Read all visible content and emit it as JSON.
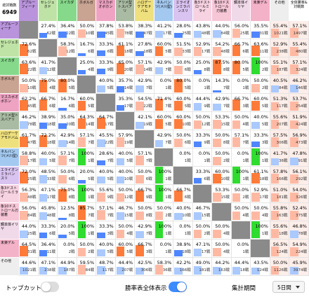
{
  "header": {
    "total_label": "総対戦数",
    "total": "6949",
    "overall_label": "全体勝率&対戦数"
  },
  "decks": [
    {
      "label": "アプルーフィーナ",
      "color": "#b994dc"
    },
    {
      "label": "セレジェホド",
      "color": "#bfe3a6"
    },
    {
      "label": "スイカダ",
      "color": "#86d98a"
    },
    {
      "label": "ホボルガ",
      "color": "#c9a493"
    },
    {
      "label": "マスカボオボホン",
      "color": "#efa3c3"
    },
    {
      "label": "アリメ型トスバアリ",
      "color": "#a9bba3"
    },
    {
      "label": "ハロデーケアモドバム",
      "color": "#efe07e"
    },
    {
      "label": "ネルバンツ(メ川型)",
      "color": "#a3c9f0"
    },
    {
      "label": "エライオンミラバンスリ",
      "color": "#d9c3f0"
    },
    {
      "label": "象3ドストロールミライ",
      "color": "#f7d2e1"
    },
    {
      "label": "象10ドストロール刃装着",
      "color": "#f6c6d7"
    },
    {
      "label": "鋼本体イリヤ",
      "color": "#f0d9e8"
    },
    {
      "label": "未楽デル",
      "color": "#f4b2c9"
    },
    {
      "label": "その他",
      "color": "#eeeeee"
    }
  ],
  "rows": [
    {
      "cells": [
        null,
        [
          27.4,
          "27.4%",
          "62戦"
        ],
        [
          36.4,
          "36.4%",
          "22戦"
        ],
        [
          50.0,
          "50.0%",
          "10戦"
        ],
        [
          37.8,
          "37.8%",
          "45戦"
        ],
        [
          53.8,
          "53.8%",
          "78戦"
        ],
        [
          38.3,
          "38.3%",
          "47戦"
        ],
        [
          41.2,
          "41.2%",
          "17戦"
        ],
        [
          28.0,
          "28.0%",
          "25戦"
        ],
        [
          43.8,
          "43.8%",
          "48戦"
        ],
        [
          44.0,
          "44.0%",
          "84戦"
        ],
        [
          56.0,
          "56.0%",
          "25戦"
        ],
        [
          35.5,
          "35.5%",
          "31戦"
        ],
        [
          55.4,
          "55.4%",
          "1021戦"
        ],
        [
          57.1,
          "57.1%",
          "1497戦"
        ]
      ]
    },
    {
      "cells": [
        [
          72.6,
          "72.6%",
          "62戦"
        ],
        null,
        [
          58.3,
          "58.3%",
          "12戦"
        ],
        [
          16.7,
          "16.7%",
          "6戦"
        ],
        [
          33.3,
          "33.3%",
          "6戦"
        ],
        [
          61.1,
          "61.1%",
          "18戦"
        ],
        [
          27.8,
          "27.8%",
          "18戦"
        ],
        [
          60.0,
          "60.0%",
          "5戦"
        ],
        [
          51.5,
          "51.5%",
          "33戦"
        ],
        [
          52.9,
          "52.9%",
          "17戦"
        ],
        [
          54.2,
          "54.2%",
          "48戦"
        ],
        [
          66.7,
          "66.7%",
          "6戦"
        ],
        [
          63.6,
          "63.6%",
          "11戦"
        ],
        [
          52.9,
          "52.9%",
          "238戦"
        ],
        [
          55.4,
          "55.4%",
          "480戦"
        ]
      ]
    },
    {
      "cells": [
        [
          63.6,
          "63.6%",
          "22戦"
        ],
        [
          41.7,
          "41.7%",
          "12戦"
        ],
        null,
        [
          25.0,
          "25.0%",
          "4戦"
        ],
        [
          33.3,
          "33.3%",
          "9戦"
        ],
        [
          65.0,
          "65.0%",
          "20戦"
        ],
        [
          57.1,
          "57.1%",
          "14戦"
        ],
        [
          42.9,
          "42.9%",
          "7戦"
        ],
        [
          50.0,
          "50.0%",
          "6戦"
        ],
        [
          25.0,
          "25.0%",
          "8戦"
        ],
        [
          87.5,
          "87.5%",
          "8戦"
        ],
        [
          80.0,
          "80.0%",
          "5戦"
        ],
        [
          100,
          "100%",
          "2戦"
        ],
        [
          55.1,
          "55.1%",
          "187戦"
        ],
        [
          57.1,
          "57.1%",
          "324戦"
        ]
      ]
    },
    {
      "cells": [
        [
          50.0,
          "50.0%",
          "10戦"
        ],
        [
          75.0,
          "75.0%",
          "4戦"
        ],
        [
          80.0,
          "80.0%",
          "5戦"
        ],
        null,
        [
          40.0,
          "40.0%",
          "5戦"
        ],
        [
          35.7,
          "35.7%",
          "14戦"
        ],
        [
          42.9,
          "42.9%",
          "7戦"
        ],
        [
          0.0,
          "0.0%",
          "1戦"
        ],
        [
          80.0,
          "80.0%",
          "5戦"
        ],
        [
          0.0,
          "0.0%",
          "1戦"
        ],
        [
          14.3,
          "14.3%",
          "7戦"
        ],
        [
          0.0,
          "0.0%",
          "1戦"
        ],
        [
          50.0,
          "50.0%",
          "2戦"
        ],
        [
          40.5,
          "40.5%",
          "84戦"
        ],
        [
          46.2,
          "46.2%",
          "146戦"
        ]
      ]
    },
    {
      "cells": [
        [
          62.2,
          "62.2%",
          "45戦"
        ],
        [
          66.7,
          "66.7%",
          "6戦"
        ],
        [
          16.7,
          "16.7%",
          "6戦"
        ],
        [
          60.0,
          "60.0%",
          "5戦"
        ],
        null,
        [
          35.3,
          "35.3%",
          "17戦"
        ],
        [
          54.5,
          "54.5%",
          "22戦"
        ],
        [
          71.4,
          "71.4%",
          "7戦"
        ],
        [
          60.0,
          "60.0%",
          "5戦"
        ],
        [
          44.4,
          "44.4%",
          "9戦"
        ],
        [
          42.9,
          "42.9%",
          "7戦"
        ],
        [
          66.7,
          "66.7%",
          "3戦"
        ],
        [
          60.0,
          "60.0%",
          "5戦"
        ],
        [
          51.3,
          "51.3%",
          "117戦"
        ],
        [
          53.7,
          "53.7%",
          "254戦"
        ]
      ]
    },
    {
      "cells": [
        [
          46.2,
          "46.2%",
          "78戦"
        ],
        [
          38.9,
          "38.9%",
          "18戦"
        ],
        [
          35.0,
          "35.0%",
          "20戦"
        ],
        [
          64.3,
          "64.3%",
          "14戦"
        ],
        [
          64.7,
          "64.7%",
          "17戦"
        ],
        null,
        [
          42.1,
          "42.1%",
          "19戦"
        ],
        [
          60.0,
          "60.0%",
          "5戦"
        ],
        [
          60.0,
          "60.0%",
          "10戦"
        ],
        [
          50.0,
          "50.0%",
          "12戦"
        ],
        [
          53.3,
          "53.3%",
          "15戦"
        ],
        [
          50.0,
          "50.0%",
          "4戦"
        ],
        [
          40.0,
          "40.0%",
          "5戦"
        ],
        [
          55.6,
          "55.6%",
          "207戦"
        ],
        [
          51.9,
          "51.9%",
          "424戦"
        ]
      ]
    },
    {
      "cells": [
        [
          61.7,
          "61.7%",
          "47戦"
        ],
        [
          72.2,
          "72.2%",
          "18戦"
        ],
        [
          42.9,
          "42.9%",
          "14戦"
        ],
        [
          57.1,
          "57.1%",
          "7戦"
        ],
        [
          45.5,
          "45.5%",
          "22戦"
        ],
        [
          57.9,
          "57.9%",
          "19戦"
        ],
        null,
        [
          42.9,
          "42.9%",
          "7戦"
        ],
        [
          50.0,
          "50.0%",
          "6戦"
        ],
        [
          33.3,
          "33.3%",
          "9戦"
        ],
        [
          50.0,
          "50.0%",
          "8戦"
        ],
        [
          57.1,
          "57.1%",
          "7戦"
        ],
        [
          33.3,
          "33.3%",
          "3戦"
        ],
        [
          57.5,
          "57.5%",
          "306戦"
        ],
        [
          56.9,
          "56.9%",
          "473戦"
        ]
      ]
    },
    {
      "cells": [
        [
          58.8,
          "58.8%",
          "17戦"
        ],
        [
          40.0,
          "40.0%",
          "5戦"
        ],
        [
          57.1,
          "57.1%",
          "7戦"
        ],
        [
          100,
          "100%",
          "1戦"
        ],
        [
          28.6,
          "28.6%",
          "7戦"
        ],
        [
          40.0,
          "40.0%",
          "5戦"
        ],
        [
          57.1,
          "57.1%",
          "7戦"
        ],
        null,
        [
          0.0,
          "0.0%",
          "1戦"
        ],
        [
          0.0,
          "0.0%",
          "1戦"
        ],
        [
          50.0,
          "50.0%",
          "2戦"
        ],
        [
          0.0,
          "0.0%",
          "1戦"
        ],
        [
          100,
          "100%",
          "1戦"
        ],
        [
          41.7,
          "41.7%",
          "36戦"
        ],
        [
          47.8,
          "47.8%",
          "91戦"
        ]
      ]
    },
    {
      "cells": [
        [
          72.0,
          "72.0%",
          "25戦"
        ],
        [
          48.5,
          "48.5%",
          "33戦"
        ],
        [
          50.0,
          "50.0%",
          "6戦"
        ],
        [
          20.0,
          "20.0%",
          "5戦"
        ],
        [
          40.0,
          "40.0%",
          "5戦"
        ],
        [
          40.0,
          "40.0%",
          "10戦"
        ],
        [
          50.0,
          "50.0%",
          "6戦"
        ],
        [
          100,
          "100%",
          "1戦"
        ],
        null,
        [
          33.3,
          "33.3%",
          "6戦"
        ],
        [
          60.0,
          "60.0%",
          "10戦"
        ],
        [
          100,
          "100%",
          "1戦"
        ],
        [
          61.1,
          "61.1%",
          "18戦"
        ],
        [
          57.8,
          "57.8%",
          "166戦"
        ],
        [
          56.1,
          "56.1%",
          "292戦"
        ]
      ]
    },
    {
      "cells": [
        [
          56.3,
          "56.3%",
          "48戦"
        ],
        [
          47.1,
          "47.1%",
          "17戦"
        ],
        [
          75.0,
          "75.0%",
          "8戦"
        ],
        [
          100,
          "100%",
          "1戦"
        ],
        [
          55.6,
          "55.6%",
          "9戦"
        ],
        [
          50.0,
          "50.0%",
          "12戦"
        ],
        [
          66.7,
          "66.7%",
          "9戦"
        ],
        [
          100,
          "100%",
          "1戦"
        ],
        [
          66.7,
          "66.7%",
          "6戦"
        ],
        null,
        [
          53.3,
          "53.3%",
          "15戦"
        ],
        [
          50.0,
          "50.0%",
          "2戦"
        ],
        [
          52.9,
          "52.9%",
          "17戦"
        ],
        [
          51.0,
          "51.0%",
          "181戦"
        ],
        [
          54.0,
          "54.0%",
          "326戦"
        ]
      ]
    },
    {
      "cells": [
        [
          56.0,
          "56.0%",
          "84戦"
        ],
        [
          45.8,
          "45.8%",
          "48戦"
        ],
        [
          12.5,
          "12.5%",
          "8戦"
        ],
        [
          85.7,
          "85.7%",
          "7戦"
        ],
        [
          57.1,
          "57.1%",
          "7戦"
        ],
        [
          46.7,
          "46.7%",
          "15戦"
        ],
        [
          50.0,
          "50.0%",
          "8戦"
        ],
        [
          50.0,
          "50.0%",
          "2戦"
        ],
        [
          40.0,
          "40.0%",
          "10戦"
        ],
        [
          46.7,
          "46.7%",
          "15戦"
        ],
        null,
        [
          50.0,
          "50.0%",
          "4戦"
        ],
        [
          50.0,
          "50.0%",
          "4戦"
        ],
        [
          55.8,
          "55.8%",
          "163戦"
        ],
        [
          52.4,
          "52.4%",
          "375戦"
        ]
      ]
    },
    {
      "cells": [
        [
          44.0,
          "44.0%",
          "25戦"
        ],
        [
          33.3,
          "33.3%",
          "6戦"
        ],
        [
          20.0,
          "20.0%",
          "5戦"
        ],
        [
          100,
          "100%",
          "1戦"
        ],
        [
          33.3,
          "33.3%",
          "3戦"
        ],
        [
          50.0,
          "50.0%",
          "4戦"
        ],
        [
          42.9,
          "42.9%",
          "7戦"
        ],
        [
          100,
          "100%",
          "1戦"
        ],
        [
          0.0,
          "0.0%",
          "1戦"
        ],
        [
          50.0,
          "50.0%",
          "2戦"
        ],
        [
          50.0,
          "50.0%",
          "4戦"
        ],
        null,
        [
          100,
          "100%",
          "1戦"
        ],
        [
          55.6,
          "55.6%",
          "18戦"
        ],
        [
          46.8,
          "46.8%",
          "78戦"
        ]
      ]
    },
    {
      "cells": [
        [
          64.5,
          "64.5%",
          "31戦"
        ],
        [
          36.4,
          "36.4%",
          "11戦"
        ],
        [
          0.0,
          "0.0%",
          "2戦"
        ],
        [
          50.0,
          "50.0%",
          "2戦"
        ],
        [
          40.0,
          "40.0%",
          "5戦"
        ],
        [
          60.0,
          "60.0%",
          "5戦"
        ],
        [
          66.7,
          "66.7%",
          "3戦"
        ],
        [
          0.0,
          "0.0%",
          "1戦"
        ],
        [
          38.9,
          "38.9%",
          "18戦"
        ],
        [
          47.1,
          "47.1%",
          "17戦"
        ],
        [
          50.0,
          "50.0%",
          "4戦"
        ],
        [
          0.0,
          "0.0%",
          "1戦"
        ],
        null,
        [
          56.5,
          "56.5%",
          "124戦"
        ],
        [
          54.9,
          "54.9%",
          "224戦"
        ]
      ]
    },
    {
      "cells": [
        [
          44.6,
          "44.6%",
          "1021戦"
        ],
        [
          47.1,
          "47.1%",
          "238戦"
        ],
        [
          44.9,
          "44.9%",
          "187戦"
        ],
        [
          59.5,
          "59.5%",
          "84戦"
        ],
        [
          48.7,
          "48.7%",
          "117戦"
        ],
        [
          44.4,
          "44.4%",
          "207戦"
        ],
        [
          42.5,
          "42.5%",
          "306戦"
        ],
        [
          58.3,
          "58.3%",
          "36戦"
        ],
        [
          42.2,
          "42.2%",
          "166戦"
        ],
        [
          49.0,
          "49.0%",
          "181戦"
        ],
        [
          44.2,
          "44.2%",
          "163戦"
        ],
        [
          44.4,
          "44.4%",
          "18戦"
        ],
        [
          43.5,
          "43.5%",
          "124戦"
        ],
        [
          50.0,
          "50.0%",
          "1126戦"
        ],
        [
          45.9,
          "45.9%",
          "3974戦"
        ]
      ]
    }
  ],
  "footer": {
    "topcut_label": "トップカット",
    "topcut_on": false,
    "full_label": "勝率表全体表示",
    "full_on": true,
    "period_label": "集計期間",
    "period": "5日間"
  }
}
